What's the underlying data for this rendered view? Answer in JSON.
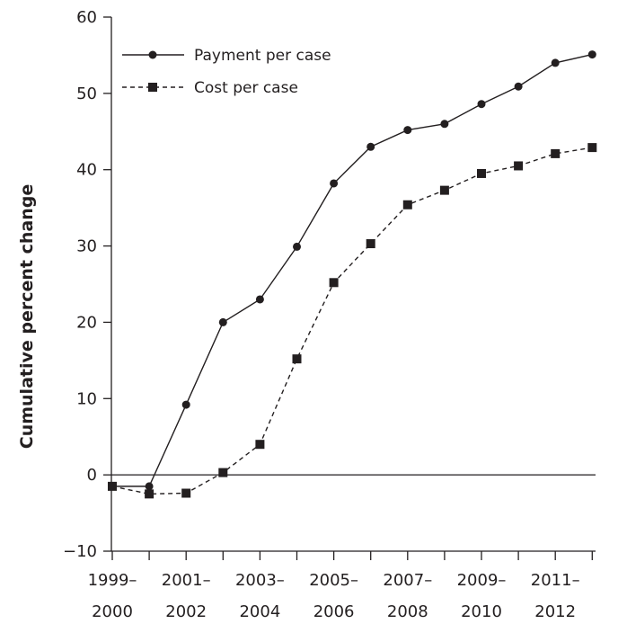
{
  "chart_data": {
    "type": "line",
    "title": "",
    "xlabel": "",
    "ylabel": "Cumulative percent change",
    "ylim": [
      -10,
      60
    ],
    "yticks": [
      -10,
      0,
      10,
      20,
      30,
      40,
      50,
      60
    ],
    "yticklabels": [
      "−10",
      "0",
      "10",
      "20",
      "30",
      "40",
      "50",
      "60"
    ],
    "grid": false,
    "legend_position": "top-left",
    "x_tick_labels": [
      {
        "line1": "1999–",
        "line2": "2000"
      },
      {
        "line1": "2001–",
        "line2": "2002"
      },
      {
        "line1": "2003–",
        "line2": "2004"
      },
      {
        "line1": "2005–",
        "line2": "2006"
      },
      {
        "line1": "2007–",
        "line2": "2008"
      },
      {
        "line1": "2009–",
        "line2": "2010"
      },
      {
        "line1": "2011–",
        "line2": "2012"
      }
    ],
    "series": [
      {
        "name": "Payment per case",
        "line_style": "solid",
        "marker": "circle",
        "color": "#231f20",
        "values": [
          -1.5,
          -1.5,
          9.2,
          20.0,
          23.0,
          29.9,
          38.2,
          43.0,
          45.2,
          46.0,
          48.6,
          50.9,
          54.0,
          55.1
        ]
      },
      {
        "name": "Cost per case",
        "line_style": "dashed",
        "marker": "square",
        "color": "#231f20",
        "values": [
          -1.5,
          -2.5,
          -2.4,
          0.3,
          4.0,
          15.2,
          25.2,
          30.3,
          35.4,
          37.3,
          39.5,
          40.5,
          42.1,
          42.9
        ]
      }
    ]
  }
}
